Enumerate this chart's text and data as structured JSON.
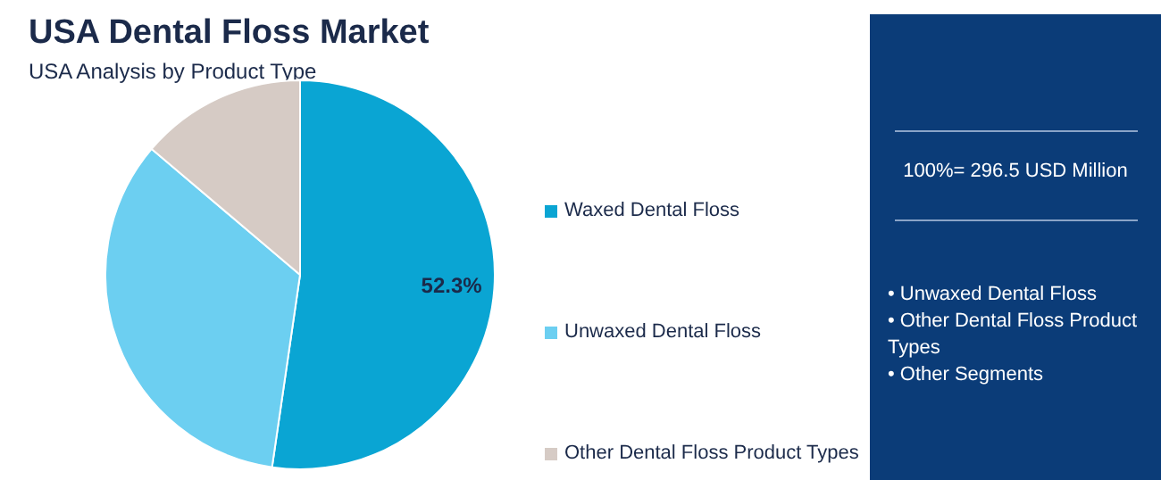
{
  "chart_data": {
    "type": "pie",
    "title": "USA Dental Floss Market",
    "subtitle": "USA Analysis by Product Type",
    "categories": [
      "Waxed Dental Floss",
      "Unwaxed Dental Floss",
      "Other Dental Floss Product Types"
    ],
    "values": [
      52.3,
      33.9,
      13.8
    ],
    "colors": [
      "#0aa5d3",
      "#6ccff1",
      "#d6cbc5"
    ],
    "value_labels": [
      "52.3%",
      null,
      null
    ],
    "legend": "right",
    "annotations": [
      "100%= 296.5 USD Million",
      "• Unwaxed Dental Floss",
      "• Other Dental Floss Product Types",
      "• Other Segments"
    ]
  }
}
